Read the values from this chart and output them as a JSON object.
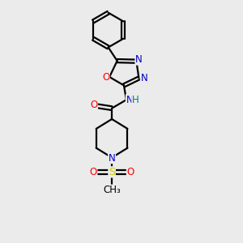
{
  "bg_color": "#ebebeb",
  "atom_color_C": "#000000",
  "atom_color_N": "#0000cc",
  "atom_color_O": "#ff0000",
  "atom_color_S": "#cccc00",
  "atom_color_H": "#008080",
  "line_color": "#000000",
  "line_width": 1.6,
  "font_size_atom": 8.5,
  "fig_width": 3.0,
  "fig_height": 3.0,
  "dpi": 100,
  "xlim": [
    0,
    10
  ],
  "ylim": [
    0,
    10
  ]
}
